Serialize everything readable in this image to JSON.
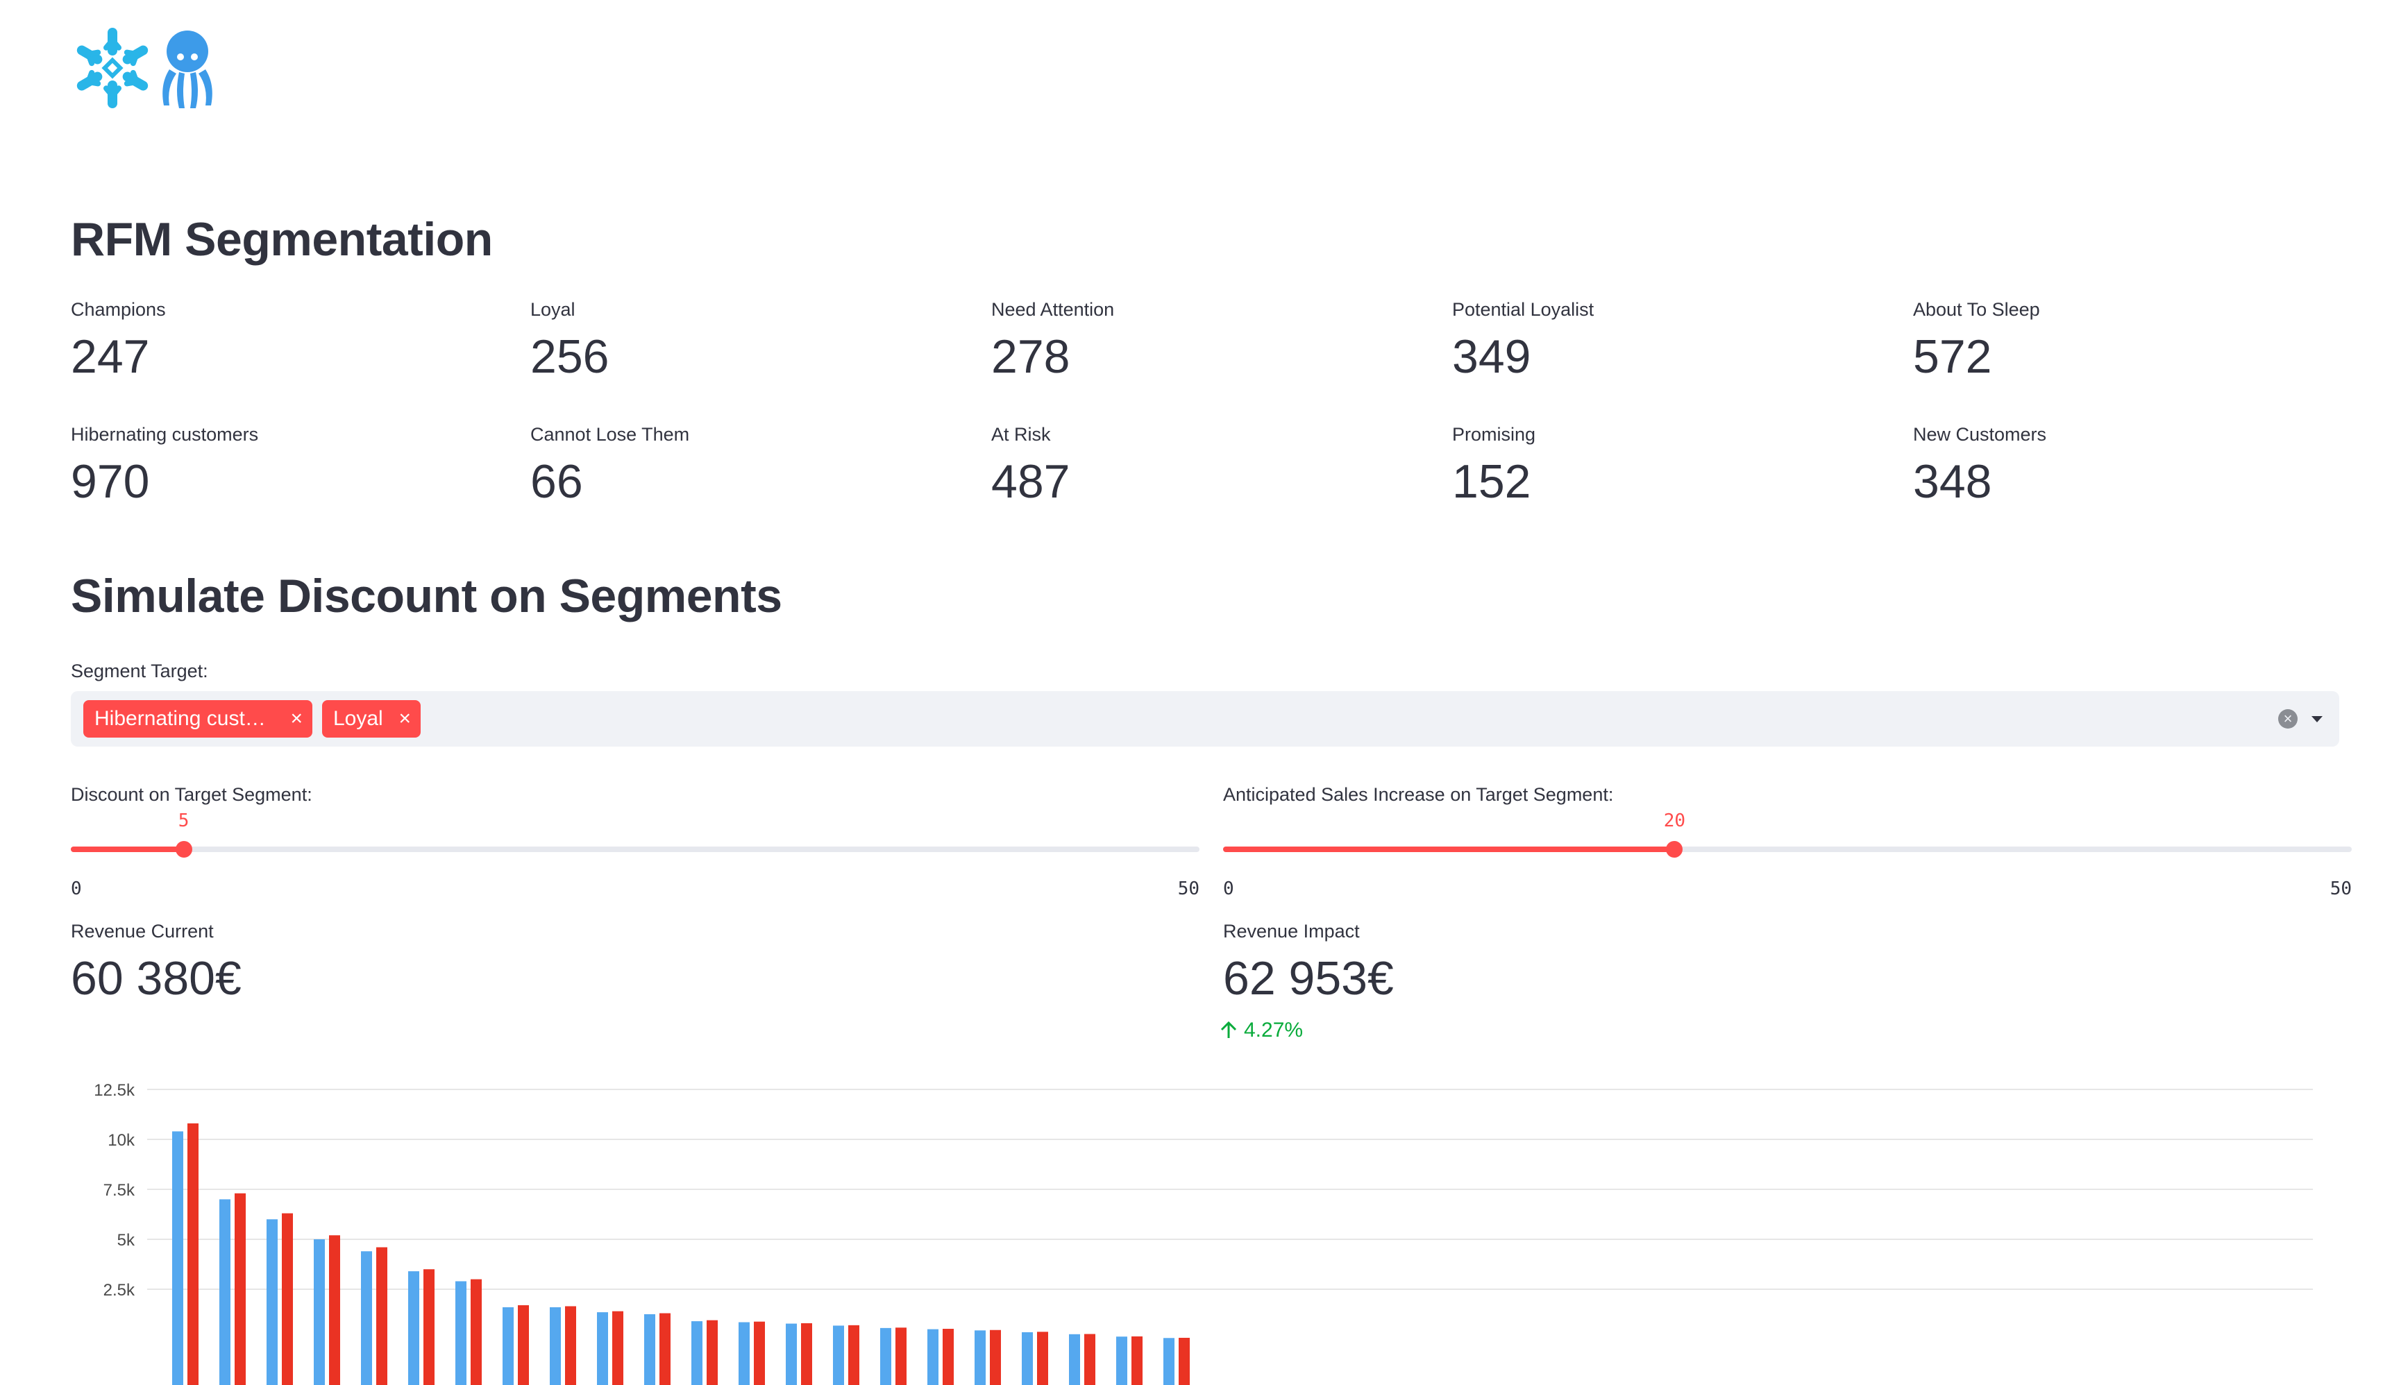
{
  "sections": {
    "rfm_title": "RFM Segmentation",
    "simulate_title": "Simulate Discount on Segments"
  },
  "segments": [
    {
      "label": "Champions",
      "value": "247"
    },
    {
      "label": "Loyal",
      "value": "256"
    },
    {
      "label": "Need Attention",
      "value": "278"
    },
    {
      "label": "Potential Loyalist",
      "value": "349"
    },
    {
      "label": "About To Sleep",
      "value": "572"
    },
    {
      "label": "Hibernating customers",
      "value": "970"
    },
    {
      "label": "Cannot Lose Them",
      "value": "66"
    },
    {
      "label": "At Risk",
      "value": "487"
    },
    {
      "label": "Promising",
      "value": "152"
    },
    {
      "label": "New Customers",
      "value": "348"
    }
  ],
  "segment_target": {
    "label": "Segment Target:",
    "tags": [
      "Hibernating cust…",
      "Loyal"
    ],
    "tag_remove_glyph": "×",
    "clear_glyph": "×"
  },
  "discount_slider": {
    "label": "Discount on Target Segment:",
    "value": 5,
    "value_text": "5",
    "min": 0,
    "max": 50,
    "min_text": "0",
    "max_text": "50"
  },
  "sales_slider": {
    "label": "Anticipated Sales Increase on Target Segment:",
    "value": 20,
    "value_text": "20",
    "min": 0,
    "max": 50,
    "min_text": "0",
    "max_text": "50"
  },
  "revenue_current": {
    "label": "Revenue Current",
    "value": "60 380€"
  },
  "revenue_impact": {
    "label": "Revenue Impact",
    "value": "62 953€",
    "delta": "4.27%"
  },
  "colors": {
    "accent": "#ff4b4b",
    "series_current": "#55a8ef",
    "series_impact": "#ea3323",
    "delta_positive": "#09ab3b"
  },
  "chart_data": {
    "type": "bar",
    "ylim": [
      0,
      12500
    ],
    "yticks": [
      2500,
      5000,
      7500,
      10000,
      12500
    ],
    "ytick_labels": [
      "2.5k",
      "5k",
      "7.5k",
      "10k",
      "12.5k"
    ],
    "grid": true,
    "series": [
      {
        "values": [
          10400,
          7000,
          6000,
          5000,
          4400,
          3400,
          2900,
          1600,
          1600,
          1350,
          1250,
          900,
          850,
          780,
          680,
          560,
          500,
          440,
          350,
          250,
          130,
          60
        ]
      },
      {
        "values": [
          10800,
          7300,
          6300,
          5200,
          4600,
          3500,
          3000,
          1700,
          1650,
          1400,
          1300,
          950,
          880,
          800,
          700,
          580,
          520,
          460,
          370,
          260,
          140,
          70
        ]
      }
    ]
  }
}
